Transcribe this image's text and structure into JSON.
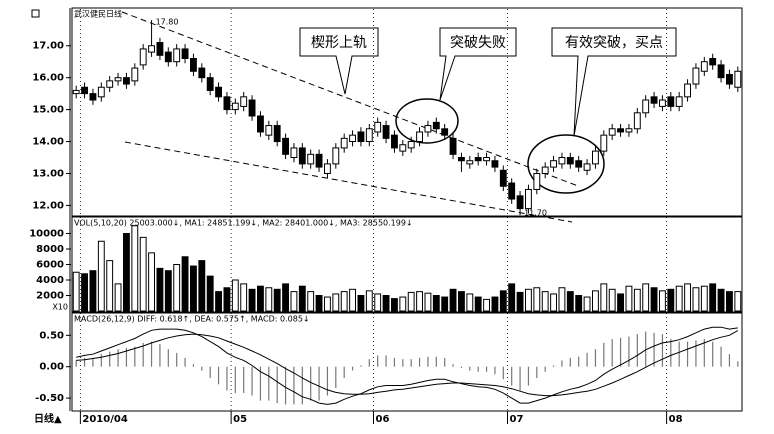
{
  "chart_data": [
    {
      "type": "candlestick",
      "title": "武汉健民日线",
      "open": [
        15.5,
        15.7,
        15.5,
        15.4,
        15.7,
        15.9,
        16.0,
        15.9,
        16.4,
        16.8,
        17.1,
        16.8,
        16.5,
        16.9,
        16.6,
        16.3,
        16.0,
        15.7,
        15.4,
        15.0,
        15.1,
        15.3,
        14.8,
        14.2,
        14.5,
        14.1,
        13.5,
        13.8,
        13.3,
        13.6,
        13.0,
        13.3,
        13.8,
        14.0,
        14.3,
        14.0,
        14.3,
        14.5,
        14.2,
        13.7,
        13.8,
        14.0,
        14.3,
        14.6,
        14.4,
        14.1,
        13.5,
        13.3,
        13.5,
        13.4,
        13.4,
        13.1,
        12.7,
        12.3,
        11.9,
        12.5,
        13.0,
        13.2,
        13.3,
        13.5,
        13.4,
        13.1,
        13.3,
        13.7,
        14.2,
        14.4,
        14.3,
        14.4,
        14.9,
        15.4,
        15.1,
        15.4,
        15.1,
        15.4,
        15.8,
        16.2,
        16.6,
        16.4,
        16.1,
        15.7
      ],
      "high": [
        15.75,
        15.85,
        15.65,
        15.85,
        16.05,
        16.15,
        16.15,
        16.45,
        17.05,
        17.8,
        17.25,
        16.95,
        17.05,
        17.05,
        16.75,
        16.45,
        16.15,
        15.85,
        15.55,
        15.35,
        15.55,
        15.45,
        14.95,
        14.65,
        14.65,
        14.25,
        13.95,
        13.95,
        13.75,
        13.75,
        13.45,
        13.95,
        14.25,
        14.35,
        14.45,
        14.55,
        14.75,
        14.65,
        14.35,
        14.05,
        14.15,
        14.45,
        14.65,
        14.75,
        14.55,
        14.25,
        13.65,
        13.55,
        13.65,
        13.65,
        13.55,
        13.25,
        12.85,
        12.45,
        12.65,
        13.15,
        13.35,
        13.55,
        13.65,
        13.65,
        13.55,
        13.45,
        13.85,
        14.35,
        14.55,
        14.55,
        14.55,
        15.05,
        15.45,
        15.55,
        15.45,
        15.55,
        15.55,
        15.95,
        16.45,
        16.65,
        16.75,
        16.55,
        16.25,
        16.35
      ],
      "low": [
        15.35,
        15.35,
        15.15,
        15.25,
        15.55,
        15.75,
        15.65,
        15.75,
        16.25,
        16.65,
        16.55,
        16.35,
        16.35,
        16.45,
        16.05,
        15.85,
        15.45,
        15.25,
        14.85,
        14.85,
        14.95,
        14.65,
        14.15,
        14.05,
        13.85,
        13.45,
        13.35,
        13.15,
        13.15,
        13.05,
        12.85,
        13.15,
        13.65,
        13.85,
        13.85,
        13.85,
        14.15,
        13.95,
        13.65,
        13.55,
        13.65,
        13.85,
        14.15,
        14.25,
        14.05,
        13.45,
        13.05,
        13.15,
        13.25,
        13.25,
        13.05,
        12.45,
        12.05,
        11.7,
        11.75,
        12.35,
        12.85,
        13.05,
        13.15,
        13.15,
        13.05,
        12.95,
        13.15,
        13.55,
        14.05,
        14.15,
        14.15,
        14.25,
        14.75,
        15.05,
        14.95,
        14.95,
        14.95,
        15.25,
        15.65,
        16.05,
        16.25,
        15.85,
        15.65,
        15.55
      ],
      "close": [
        15.6,
        15.5,
        15.3,
        15.7,
        15.9,
        16.0,
        15.8,
        16.3,
        16.9,
        17.0,
        16.7,
        16.5,
        16.9,
        16.6,
        16.2,
        16.0,
        15.6,
        15.4,
        15.0,
        15.2,
        15.4,
        14.8,
        14.3,
        14.5,
        14.0,
        13.6,
        13.8,
        13.3,
        13.6,
        13.2,
        13.3,
        13.8,
        14.1,
        14.2,
        14.0,
        14.4,
        14.6,
        14.1,
        13.8,
        13.9,
        14.0,
        14.3,
        14.5,
        14.4,
        14.2,
        13.6,
        13.4,
        13.4,
        13.4,
        13.5,
        13.2,
        12.6,
        12.2,
        11.9,
        12.5,
        13.0,
        13.2,
        13.4,
        13.5,
        13.3,
        13.2,
        13.3,
        13.7,
        14.2,
        14.4,
        14.3,
        14.4,
        14.9,
        15.3,
        15.2,
        15.3,
        15.1,
        15.4,
        15.8,
        16.3,
        16.5,
        16.4,
        16.0,
        15.8,
        16.2
      ],
      "high_label": "17.80",
      "low_label": "11.70",
      "ylim": [
        11.7,
        18.15
      ],
      "yticks": [
        {
          "value": 12,
          "label": "12.00"
        },
        {
          "value": 13,
          "label": "13.00"
        },
        {
          "value": 14,
          "label": "14.00"
        },
        {
          "value": 15,
          "label": "15.00"
        },
        {
          "value": 16,
          "label": "16.00"
        },
        {
          "value": 17,
          "label": "17.00"
        }
      ],
      "annotations": [
        "楔形上轨",
        "突破失败",
        "有效突破，买点"
      ]
    },
    {
      "type": "bar",
      "title": "VOL(5,10,20) 25003.000↓, MA1: 24851.199↓, MA2: 28401.000↓, MA3: 28550.199↓",
      "unit_label": "X10",
      "values": [
        5000,
        4800,
        5200,
        9000,
        6500,
        3500,
        10000,
        11000,
        9500,
        7500,
        5500,
        5200,
        6000,
        7000,
        5800,
        6500,
        4500,
        2500,
        3000,
        4000,
        3500,
        2800,
        3200,
        3000,
        2800,
        3500,
        2500,
        3200,
        2500,
        2000,
        1800,
        2200,
        2500,
        2800,
        2000,
        2600,
        2200,
        2000,
        1600,
        1800,
        2400,
        2500,
        2300,
        2000,
        1800,
        2800,
        2500,
        2200,
        1800,
        1500,
        1800,
        2600,
        3500,
        2400,
        2800,
        3000,
        2500,
        2200,
        3000,
        2500,
        2000,
        1800,
        2600,
        3500,
        2800,
        2200,
        3200,
        2800,
        3500,
        3000,
        2600,
        2800,
        3200,
        3500,
        3000,
        3200,
        3500,
        2800,
        2500,
        2500
      ],
      "ylim": [
        0,
        12000
      ],
      "yticks": [
        2000,
        4000,
        6000,
        8000,
        10000
      ]
    },
    {
      "type": "macd",
      "title": "MACD(26,12,9) DIFF: 0.618↑, DEA: 0.575↑, MACD: 0.085↓",
      "diff": [
        0.15,
        0.18,
        0.2,
        0.25,
        0.3,
        0.35,
        0.4,
        0.45,
        0.52,
        0.58,
        0.6,
        0.6,
        0.6,
        0.58,
        0.54,
        0.48,
        0.4,
        0.32,
        0.22,
        0.15,
        0.1,
        0.02,
        -0.08,
        -0.15,
        -0.24,
        -0.33,
        -0.4,
        -0.48,
        -0.52,
        -0.58,
        -0.6,
        -0.58,
        -0.52,
        -0.47,
        -0.43,
        -0.37,
        -0.32,
        -0.3,
        -0.3,
        -0.3,
        -0.28,
        -0.25,
        -0.22,
        -0.2,
        -0.2,
        -0.24,
        -0.27,
        -0.3,
        -0.32,
        -0.33,
        -0.36,
        -0.42,
        -0.5,
        -0.58,
        -0.58,
        -0.54,
        -0.5,
        -0.45,
        -0.4,
        -0.36,
        -0.33,
        -0.28,
        -0.22,
        -0.12,
        -0.04,
        0.03,
        0.1,
        0.18,
        0.27,
        0.33,
        0.38,
        0.4,
        0.43,
        0.48,
        0.54,
        0.6,
        0.63,
        0.63,
        0.6,
        0.618
      ],
      "dea": [
        0.1,
        0.11,
        0.13,
        0.15,
        0.18,
        0.21,
        0.25,
        0.29,
        0.33,
        0.38,
        0.42,
        0.46,
        0.49,
        0.51,
        0.52,
        0.51,
        0.49,
        0.46,
        0.41,
        0.36,
        0.31,
        0.25,
        0.19,
        0.12,
        0.05,
        -0.03,
        -0.1,
        -0.18,
        -0.25,
        -0.31,
        -0.37,
        -0.41,
        -0.43,
        -0.44,
        -0.44,
        -0.43,
        -0.41,
        -0.39,
        -0.37,
        -0.36,
        -0.34,
        -0.32,
        -0.3,
        -0.28,
        -0.27,
        -0.26,
        -0.26,
        -0.27,
        -0.28,
        -0.29,
        -0.3,
        -0.32,
        -0.35,
        -0.39,
        -0.43,
        -0.45,
        -0.46,
        -0.46,
        -0.45,
        -0.43,
        -0.41,
        -0.39,
        -0.36,
        -0.31,
        -0.26,
        -0.2,
        -0.14,
        -0.08,
        -0.01,
        0.06,
        0.12,
        0.18,
        0.23,
        0.28,
        0.33,
        0.38,
        0.43,
        0.47,
        0.5,
        0.575
      ],
      "macd": [
        0.1,
        0.14,
        0.14,
        0.2,
        0.24,
        0.28,
        0.3,
        0.32,
        0.38,
        0.4,
        0.36,
        0.28,
        0.22,
        0.14,
        0.04,
        -0.06,
        -0.18,
        -0.28,
        -0.38,
        -0.42,
        -0.42,
        -0.46,
        -0.54,
        -0.54,
        -0.58,
        -0.6,
        -0.6,
        -0.6,
        -0.54,
        -0.54,
        -0.46,
        -0.34,
        -0.18,
        -0.06,
        0.02,
        0.12,
        0.18,
        0.18,
        0.14,
        0.12,
        0.12,
        0.14,
        0.16,
        0.16,
        0.14,
        0.04,
        -0.02,
        -0.06,
        -0.08,
        -0.08,
        -0.12,
        -0.2,
        -0.3,
        -0.38,
        -0.3,
        -0.18,
        -0.08,
        0.02,
        0.1,
        0.14,
        0.16,
        0.22,
        0.28,
        0.38,
        0.44,
        0.46,
        0.48,
        0.52,
        0.56,
        0.54,
        0.52,
        0.44,
        0.4,
        0.4,
        0.42,
        0.44,
        0.4,
        0.32,
        0.2,
        0.085
      ],
      "ylim": [
        -0.69,
        0.84
      ],
      "yticks": [
        {
          "value": -0.5,
          "label": "-0.50"
        },
        {
          "value": 0,
          "label": "0.00"
        },
        {
          "value": 0.5,
          "label": "0.50"
        }
      ],
      "x_label": "日线▲",
      "xticks": [
        {
          "value": 1,
          "label": "2010/04"
        },
        {
          "value": 19,
          "label": "05"
        },
        {
          "value": 36,
          "label": "06"
        },
        {
          "value": 52,
          "label": "07"
        },
        {
          "value": 71,
          "label": "08"
        }
      ]
    }
  ]
}
